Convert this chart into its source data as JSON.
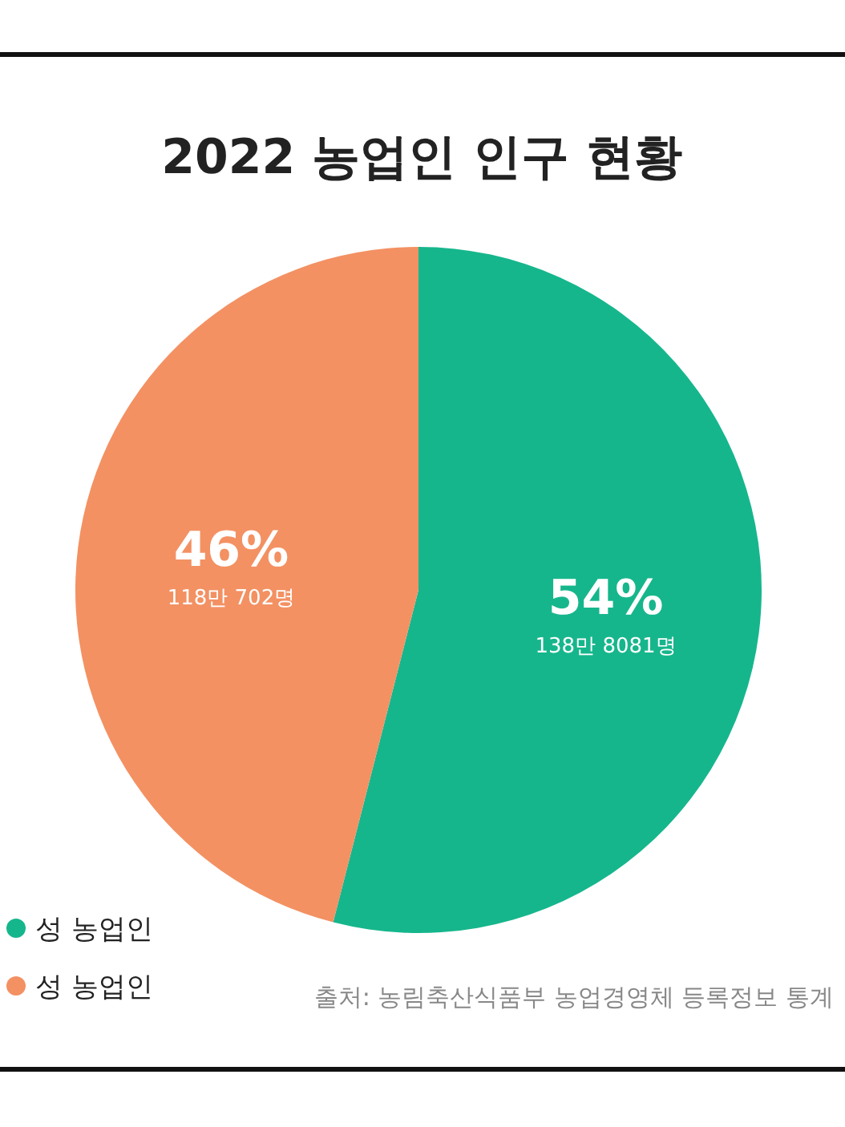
{
  "chart_data": {
    "type": "pie",
    "title": "2022 농업인 인구 현황",
    "categories": [
      "성 농업인",
      "성 농업인"
    ],
    "values": [
      54,
      46
    ],
    "colors": [
      "#16b68c",
      "#f39163"
    ],
    "value_labels": [
      "54%",
      "46%"
    ],
    "legend": "bottom left",
    "annotations": [
      "138만 8081명",
      "118만 702명",
      "출처: 농림축산식품부 농업경영체 등록정보 통계"
    ]
  }
}
